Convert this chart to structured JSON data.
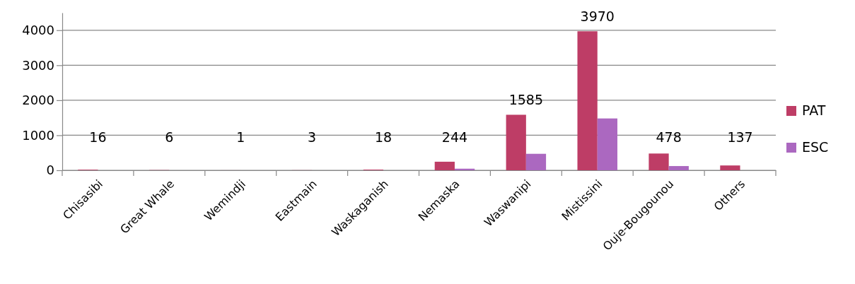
{
  "chart_data": {
    "type": "bar",
    "categories": [
      "Chisasibi",
      "Great Whale",
      "Wemindji",
      "Eastmain",
      "Waskaganish",
      "Nemaska",
      "Waswanipi",
      "Mistissini",
      "Ouje-Bougounou",
      "Others"
    ],
    "series": [
      {
        "name": "PAT",
        "color": "#be3d66",
        "values": [
          16,
          6,
          1,
          3,
          18,
          244,
          1585,
          3970,
          478,
          137
        ],
        "value_labels": [
          "16",
          "6",
          "1",
          "3",
          "18",
          "244",
          "1585",
          "3970",
          "478",
          "137"
        ]
      },
      {
        "name": "ESC",
        "color": "#ab68c0",
        "values": [
          0,
          0,
          0,
          0,
          0,
          45,
          470,
          1480,
          120,
          0
        ]
      }
    ],
    "ylim": [
      0,
      4500
    ],
    "yticks": [
      0,
      1000,
      2000,
      3000,
      4000
    ],
    "grid": "y",
    "legend": "right"
  }
}
